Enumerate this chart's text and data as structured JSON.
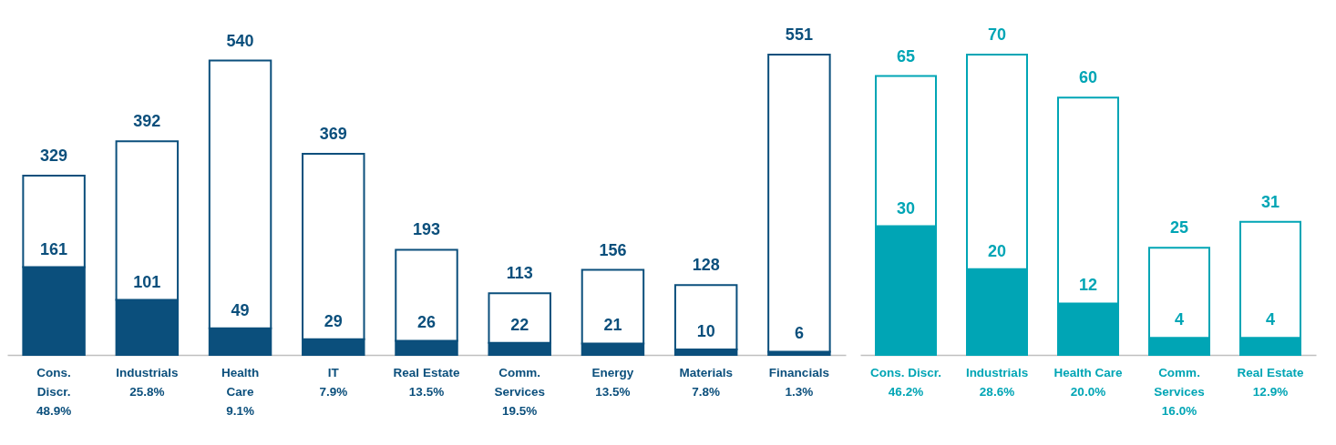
{
  "chart_data": [
    {
      "type": "bar",
      "stacked": true,
      "tick_labels": "x",
      "categories": [
        "Cons.\nDiscr.\n48.9%",
        "Industrials\n25.8%",
        "Health\nCare\n9.1%",
        "IT\n7.9%",
        "Real Estate\n13.5%",
        "Comm.\nServices\n19.5%",
        "Energy\n13.5%",
        "Materials\n7.8%",
        "Financials\n1.3%"
      ],
      "series": [
        {
          "color": "#0b4f7c",
          "values": [
            161,
            101,
            49,
            29,
            26,
            22,
            21,
            10,
            6
          ],
          "value_labels": [
            "161",
            "101",
            "49",
            "29",
            "26",
            "22",
            "21",
            "10",
            "6"
          ]
        },
        {
          "color": "#ffffff",
          "values": [
            168,
            291,
            491,
            340,
            167,
            91,
            135,
            118,
            545
          ]
        }
      ],
      "totals": [
        "329",
        "392",
        "540",
        "369",
        "193",
        "113",
        "156",
        "128",
        "551"
      ]
    },
    {
      "type": "bar",
      "stacked": true,
      "tick_labels": "x",
      "categories": [
        "Cons. Discr.\n46.2%",
        "Industrials\n28.6%",
        "Health Care\n20.0%",
        "Comm.\nServices\n16.0%",
        "Real Estate\n12.9%"
      ],
      "series": [
        {
          "color": "#00a5b5",
          "values": [
            30,
            20,
            12,
            4,
            4
          ],
          "value_labels": [
            "30",
            "20",
            "12",
            "4",
            "4"
          ]
        },
        {
          "color": "#ffffff",
          "values": [
            35,
            50,
            48,
            21,
            27
          ]
        }
      ],
      "totals": [
        "65",
        "70",
        "60",
        "25",
        "31"
      ]
    }
  ]
}
